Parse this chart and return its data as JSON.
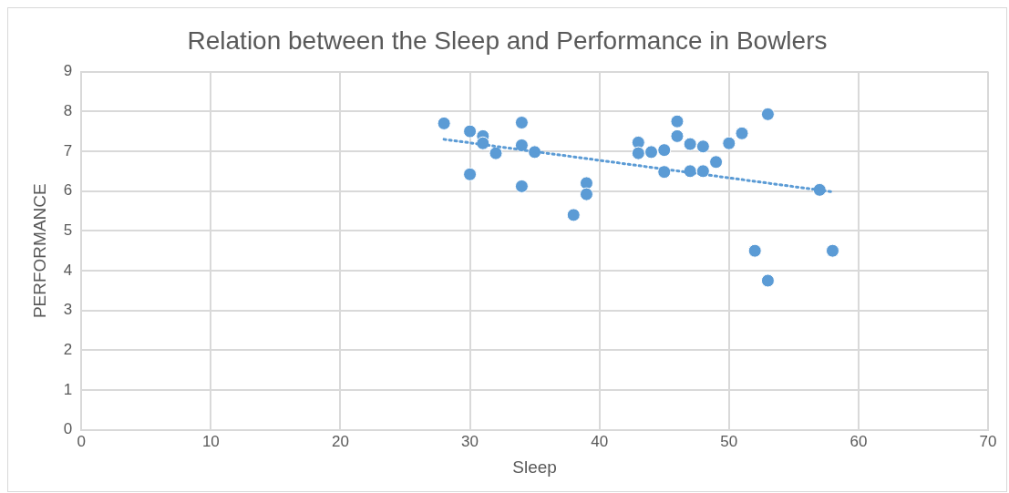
{
  "chart_data": {
    "type": "scatter",
    "title": "Relation between the Sleep and Performance in Bowlers",
    "xlabel": "Sleep",
    "ylabel": "PERFORMANCE",
    "xlim": [
      0,
      70
    ],
    "xticks": [
      0,
      10,
      20,
      30,
      40,
      50,
      60,
      70
    ],
    "ylim": [
      0,
      9
    ],
    "yticks": [
      0,
      1,
      2,
      3,
      4,
      5,
      6,
      7,
      8,
      9
    ],
    "grid": true,
    "legend": false,
    "marker": "circle",
    "series": [
      {
        "color": "#5b9bd5",
        "x": [
          28,
          30,
          30,
          31,
          31,
          32,
          34,
          34,
          34,
          35,
          38,
          39,
          39,
          43,
          43,
          44,
          45,
          45,
          46,
          46,
          47,
          47,
          48,
          48,
          49,
          50,
          51,
          53,
          52,
          53,
          57,
          58
        ],
        "values": [
          7.7,
          7.5,
          6.42,
          7.38,
          7.2,
          6.95,
          7.72,
          7.15,
          6.12,
          6.98,
          5.4,
          6.2,
          5.92,
          7.22,
          6.95,
          6.98,
          7.03,
          6.48,
          7.75,
          7.38,
          7.18,
          6.5,
          7.12,
          6.5,
          6.73,
          7.2,
          7.45,
          7.93,
          4.5,
          3.75,
          6.03,
          4.5
        ]
      },
      {
        "type": "line",
        "color": "#5b9bd5",
        "line_style": "dotted",
        "marker": "none",
        "x": [
          28,
          58
        ],
        "values": [
          7.3,
          5.98
        ]
      }
    ]
  }
}
